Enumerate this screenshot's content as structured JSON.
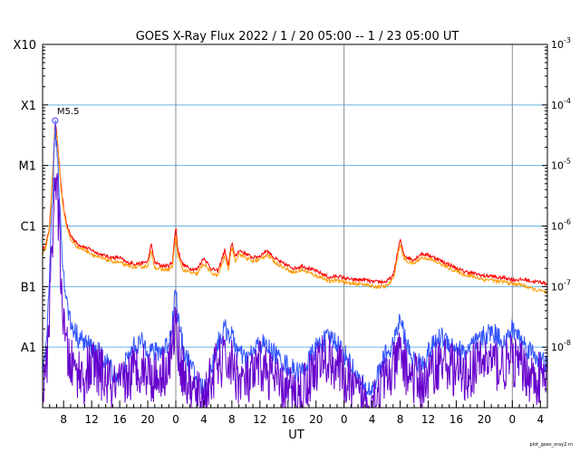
{
  "chart_data": {
    "type": "line",
    "title": "GOES X-Ray Flux   2022 /  1 / 20   05:00 --  1 / 23   05:00   UT",
    "xlabel": "UT",
    "yscale": "log",
    "ylim": [
      1e-09,
      0.001
    ],
    "xlim_hours": [
      0,
      72
    ],
    "grid": true,
    "left_axis_ticks": [
      {
        "label": "X10",
        "value": 0.001
      },
      {
        "label": "X1",
        "value": 0.0001
      },
      {
        "label": "M1",
        "value": 1e-05
      },
      {
        "label": "C1",
        "value": 1e-06
      },
      {
        "label": "B1",
        "value": 1e-07
      },
      {
        "label": "A1",
        "value": 1e-08
      }
    ],
    "right_axis_ticks": [
      {
        "base": "10",
        "exp": "-3",
        "value": 0.001
      },
      {
        "base": "10",
        "exp": "-4",
        "value": 0.0001
      },
      {
        "base": "10",
        "exp": "-5",
        "value": 1e-05
      },
      {
        "base": "10",
        "exp": "-6",
        "value": 1e-06
      },
      {
        "base": "10",
        "exp": "-7",
        "value": 1e-07
      },
      {
        "base": "10",
        "exp": "-8",
        "value": 1e-08
      }
    ],
    "x_ticks": [
      {
        "label": "8",
        "hour": 3
      },
      {
        "label": "12",
        "hour": 7
      },
      {
        "label": "16",
        "hour": 11
      },
      {
        "label": "20",
        "hour": 15
      },
      {
        "label": "0",
        "hour": 19
      },
      {
        "label": "4",
        "hour": 23
      },
      {
        "label": "8",
        "hour": 27
      },
      {
        "label": "12",
        "hour": 31
      },
      {
        "label": "16",
        "hour": 35
      },
      {
        "label": "20",
        "hour": 39
      },
      {
        "label": "0",
        "hour": 43
      },
      {
        "label": "4",
        "hour": 47
      },
      {
        "label": "8",
        "hour": 51
      },
      {
        "label": "12",
        "hour": 55
      },
      {
        "label": "16",
        "hour": 59
      },
      {
        "label": "20",
        "hour": 63
      },
      {
        "label": "0",
        "hour": 67
      },
      {
        "label": "4",
        "hour": 71
      }
    ],
    "day_boundaries_hours": [
      19,
      43,
      67
    ],
    "annotations": [
      {
        "text": "M5.5",
        "hour": 1.8,
        "value": 5.5e-05
      }
    ],
    "series": [
      {
        "color": "#ff0000",
        "hours": [
          0,
          0.5,
          1,
          1.5,
          1.8,
          2.2,
          2.6,
          3,
          3.5,
          4,
          5,
          6,
          7,
          8,
          9,
          10,
          11,
          12,
          13,
          14,
          15,
          15.5,
          16,
          17,
          18,
          18.5,
          19,
          19.3,
          20,
          21,
          22,
          23,
          24,
          25,
          26,
          26.5,
          27,
          27.5,
          28,
          29,
          30,
          31,
          32,
          33,
          34,
          35,
          36,
          37,
          38,
          39,
          40,
          41,
          42,
          43,
          44,
          45,
          46,
          47,
          48,
          49,
          50,
          51,
          51.5,
          52,
          53,
          54,
          55,
          56,
          57,
          58,
          59,
          60,
          61,
          62,
          63,
          64,
          65,
          66,
          67,
          68,
          69,
          70,
          71,
          72
        ],
        "values": [
          4e-07,
          5e-07,
          1e-06,
          1e-05,
          5.5e-05,
          2e-05,
          5e-06,
          2e-06,
          1e-06,
          7e-07,
          5e-07,
          4.5e-07,
          4e-07,
          3.5e-07,
          3.2e-07,
          3e-07,
          3e-07,
          2.5e-07,
          2.4e-07,
          2.4e-07,
          2.6e-07,
          5e-07,
          2.5e-07,
          2.2e-07,
          2.2e-07,
          2.5e-07,
          1e-06,
          4e-07,
          2.3e-07,
          2e-07,
          1.9e-07,
          3e-07,
          2e-07,
          1.8e-07,
          4e-07,
          2.2e-07,
          5.5e-07,
          3e-07,
          4e-07,
          3.5e-07,
          3e-07,
          3.2e-07,
          4e-07,
          3e-07,
          2.5e-07,
          2.2e-07,
          2e-07,
          2.2e-07,
          2e-07,
          1.8e-07,
          1.6e-07,
          1.4e-07,
          1.5e-07,
          1.4e-07,
          1.3e-07,
          1.3e-07,
          1.3e-07,
          1.2e-07,
          1.2e-07,
          1.2e-07,
          1.5e-07,
          6e-07,
          3.5e-07,
          3e-07,
          2.8e-07,
          3.5e-07,
          3.3e-07,
          3e-07,
          2.6e-07,
          2.3e-07,
          2e-07,
          1.8e-07,
          1.7e-07,
          1.6e-07,
          1.5e-07,
          1.5e-07,
          1.4e-07,
          1.4e-07,
          1.3e-07,
          1.3e-07,
          1.3e-07,
          1.2e-07,
          1.2e-07,
          1.1e-07
        ]
      },
      {
        "color": "#ff9900",
        "hours": [
          0,
          0.5,
          1,
          1.5,
          1.8,
          2.2,
          2.6,
          3,
          3.5,
          4,
          5,
          6,
          7,
          8,
          9,
          10,
          11,
          12,
          13,
          14,
          15,
          15.5,
          16,
          17,
          18,
          18.5,
          19,
          19.3,
          20,
          21,
          22,
          23,
          24,
          25,
          26,
          26.5,
          27,
          27.5,
          28,
          29,
          30,
          31,
          32,
          33,
          34,
          35,
          36,
          37,
          38,
          39,
          40,
          41,
          42,
          43,
          44,
          45,
          46,
          47,
          48,
          49,
          50,
          51,
          51.5,
          52,
          53,
          54,
          55,
          56,
          57,
          58,
          59,
          60,
          61,
          62,
          63,
          64,
          65,
          66,
          67,
          68,
          69,
          70,
          71,
          72
        ],
        "values": [
          3.5e-07,
          4.5e-07,
          9e-07,
          9e-06,
          4.8e-05,
          1.8e-05,
          4.5e-06,
          1.8e-06,
          9e-07,
          6e-07,
          4.5e-07,
          4e-07,
          3.5e-07,
          3e-07,
          2.8e-07,
          2.6e-07,
          2.5e-07,
          2.2e-07,
          2.1e-07,
          2.1e-07,
          2.2e-07,
          3.8e-07,
          2.1e-07,
          1.9e-07,
          1.9e-07,
          2.1e-07,
          7e-07,
          3.2e-07,
          1.9e-07,
          1.7e-07,
          1.6e-07,
          2.4e-07,
          1.7e-07,
          1.5e-07,
          3.2e-07,
          1.9e-07,
          4.5e-07,
          2.6e-07,
          3.5e-07,
          3e-07,
          2.6e-07,
          2.8e-07,
          3.4e-07,
          2.6e-07,
          2.2e-07,
          1.9e-07,
          1.7e-07,
          1.9e-07,
          1.7e-07,
          1.5e-07,
          1.4e-07,
          1.2e-07,
          1.3e-07,
          1.2e-07,
          1.1e-07,
          1.1e-07,
          1.1e-07,
          1e-07,
          1e-07,
          1e-07,
          1.3e-07,
          5e-07,
          3e-07,
          2.6e-07,
          2.4e-07,
          3e-07,
          2.9e-07,
          2.6e-07,
          2.3e-07,
          2e-07,
          1.8e-07,
          1.6e-07,
          1.5e-07,
          1.4e-07,
          1.3e-07,
          1.3e-07,
          1.2e-07,
          1.2e-07,
          1.1e-07,
          1.1e-07,
          1e-07,
          9e-08,
          8.5e-08,
          8e-08
        ]
      },
      {
        "color": "#3355ff",
        "hours": [
          0,
          0.5,
          1,
          1.5,
          1.8,
          2.2,
          2.6,
          3,
          3.5,
          4,
          5,
          6,
          7,
          8,
          9,
          10,
          11,
          12,
          13,
          14,
          15,
          16,
          17,
          18,
          18.5,
          19,
          19.3,
          20,
          21,
          22,
          23,
          24,
          25,
          26,
          27,
          28,
          29,
          30,
          31,
          32,
          33,
          34,
          35,
          36,
          37,
          38,
          39,
          40,
          41,
          42,
          43,
          44,
          45,
          46,
          47,
          48,
          49,
          50,
          51,
          52,
          53,
          54,
          55,
          56,
          57,
          58,
          59,
          60,
          61,
          62,
          63,
          64,
          65,
          66,
          67,
          68,
          69,
          70,
          71,
          72
        ],
        "values": [
          3e-09,
          8e-09,
          2e-07,
          5e-06,
          4.5e-05,
          1e-05,
          1e-06,
          1.5e-07,
          5e-08,
          2.5e-08,
          1.5e-08,
          1.2e-08,
          1e-08,
          8e-09,
          6e-09,
          4e-09,
          3e-09,
          6e-09,
          1e-08,
          1.2e-08,
          1e-08,
          8e-09,
          9e-09,
          1.2e-08,
          2.5e-08,
          1e-07,
          3e-08,
          1e-08,
          5e-09,
          3e-09,
          2e-09,
          4e-09,
          1.2e-08,
          2e-08,
          1.5e-08,
          8e-09,
          6e-09,
          8e-09,
          1.2e-08,
          1e-08,
          8e-09,
          6e-09,
          5e-09,
          4e-09,
          4e-09,
          6e-09,
          1e-08,
          1.2e-08,
          1.5e-08,
          1.2e-08,
          8e-09,
          5e-09,
          3e-09,
          2e-09,
          2e-09,
          4e-09,
          8e-09,
          1e-08,
          3e-08,
          1e-08,
          6e-09,
          5e-09,
          8e-09,
          1.2e-08,
          1.5e-08,
          1.2e-08,
          1e-08,
          8e-09,
          1e-08,
          1.2e-08,
          1.5e-08,
          1.8e-08,
          1.5e-08,
          1.2e-08,
          2e-08,
          1.5e-08,
          1e-08,
          8e-09,
          6e-09,
          5e-09
        ]
      },
      {
        "color": "#6600cc",
        "hours": [
          0,
          0.5,
          1,
          1.5,
          1.8,
          2.2,
          2.6,
          3,
          3.5,
          4,
          5,
          6,
          7,
          8,
          9,
          10,
          11,
          12,
          13,
          14,
          15,
          16,
          17,
          18,
          18.5,
          19,
          19.3,
          20,
          21,
          22,
          23,
          24,
          25,
          26,
          27,
          28,
          29,
          30,
          31,
          32,
          33,
          34,
          35,
          36,
          37,
          38,
          39,
          40,
          41,
          42,
          43,
          44,
          45,
          46,
          47,
          48,
          49,
          50,
          51,
          52,
          53,
          54,
          55,
          56,
          57,
          58,
          59,
          60,
          61,
          62,
          63,
          64,
          65,
          66,
          67,
          68,
          69,
          70,
          71,
          72
        ],
        "values": [
          2e-09,
          3e-09,
          5e-08,
          1e-06,
          8e-06,
          2e-06,
          2e-07,
          2e-08,
          8e-09,
          5e-09,
          4e-09,
          3e-09,
          5e-09,
          4e-09,
          3e-09,
          2e-09,
          2e-09,
          3e-09,
          4e-09,
          5e-09,
          4e-09,
          3e-09,
          4e-09,
          5e-09,
          1e-08,
          3e-08,
          1e-08,
          4e-09,
          2e-09,
          1.5e-09,
          1.5e-09,
          3e-09,
          5e-09,
          6e-09,
          5e-09,
          3e-09,
          2.5e-09,
          3e-09,
          5e-09,
          4e-09,
          3e-09,
          2e-09,
          2e-09,
          1.5e-09,
          2e-09,
          3e-09,
          5e-09,
          6e-09,
          6e-09,
          5e-09,
          3e-09,
          2e-09,
          1.5e-09,
          1.2e-09,
          1.5e-09,
          2e-09,
          3e-09,
          4e-09,
          8e-09,
          4e-09,
          3e-09,
          2.5e-09,
          3e-09,
          5e-09,
          6e-09,
          5e-09,
          4e-09,
          3e-09,
          4e-09,
          5e-09,
          6e-09,
          6e-09,
          5e-09,
          5e-09,
          6e-09,
          5e-09,
          4e-09,
          3e-09,
          3e-09,
          2.5e-09
        ]
      }
    ]
  },
  "footer": {
    "credit": "plot_goes_xray2.rn"
  }
}
